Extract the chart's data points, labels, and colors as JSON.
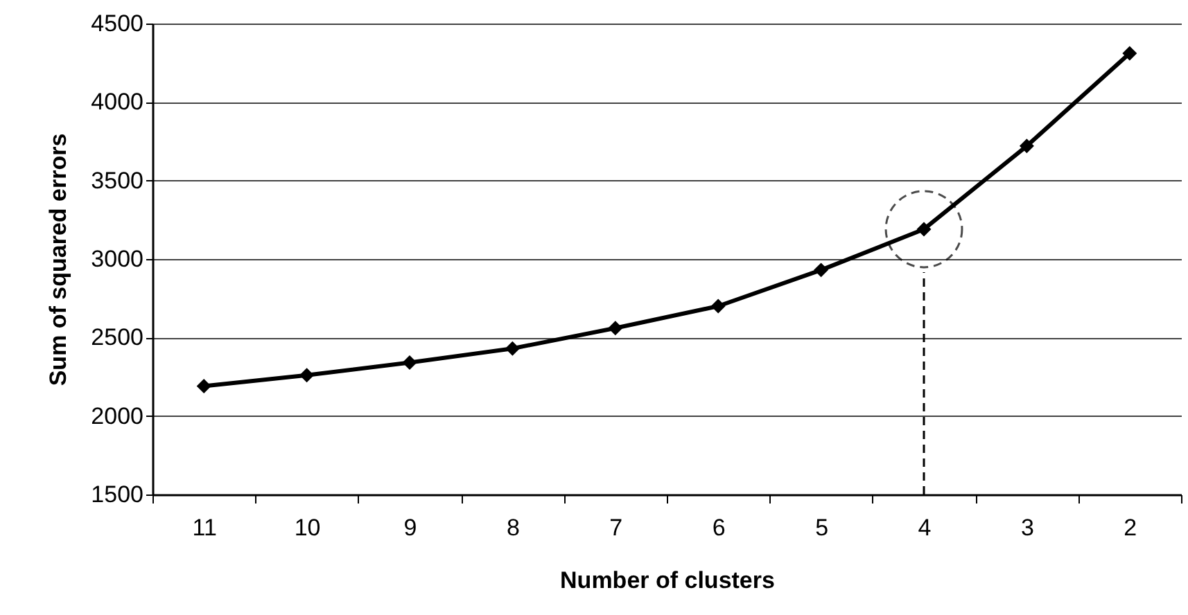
{
  "chart_data": {
    "type": "line",
    "xlabel": "Number of clusters",
    "ylabel": "Sum of squared errors",
    "categories": [
      "11",
      "10",
      "9",
      "8",
      "7",
      "6",
      "5",
      "4",
      "3",
      "2"
    ],
    "series": [
      {
        "color": "#000000",
        "values": [
          2190,
          2260,
          2340,
          2430,
          2560,
          2700,
          2930,
          3190,
          3720,
          4310
        ]
      }
    ],
    "ylim": [
      1500,
      4500
    ],
    "yticks": [
      1500,
      2000,
      2500,
      3000,
      3500,
      4000,
      4500
    ],
    "grid": "y",
    "marker": "diamond",
    "line_style": "solid",
    "ref_lines": [
      {
        "axis": "x",
        "value": "4",
        "line_style": "dashed",
        "color": "#000000"
      }
    ]
  }
}
